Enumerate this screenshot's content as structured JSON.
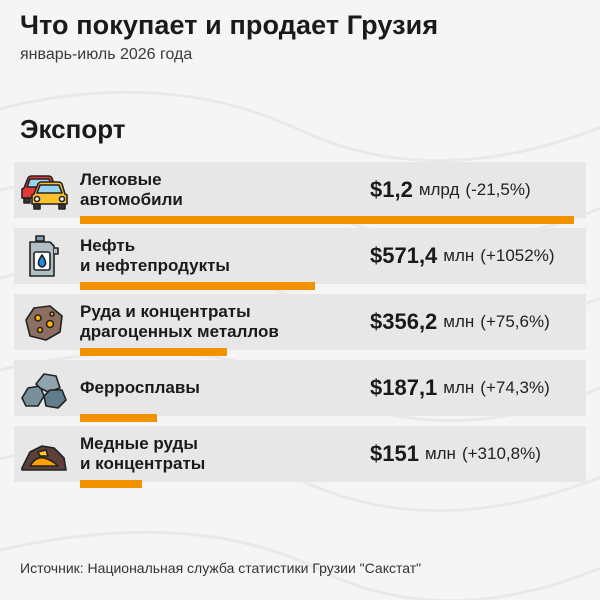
{
  "header": {
    "title": "Что покупает и продает Грузия",
    "subtitle": "январь-июль 2026 года"
  },
  "section": {
    "title": "Экспорт"
  },
  "colors": {
    "bar": "#f39200",
    "row_bg": "#e7e7e7"
  },
  "chart_data": {
    "type": "bar",
    "orientation": "horizontal",
    "unit": "USD",
    "categories": [
      "Легковые автомобили",
      "Нефть и нефтепродукты",
      "Руда и концентраты драгоценных металлов",
      "Ферросплавы",
      "Медные руды и концентраты"
    ],
    "values_musd": [
      1200,
      571.4,
      356.2,
      187.1,
      151
    ],
    "xlim": [
      0,
      1200
    ],
    "grid": false,
    "legend": "none"
  },
  "rows": [
    {
      "icon": "car-icon",
      "label_line1": "Легковые",
      "label_line2": "автомобили",
      "amount": "$1,2",
      "unit": "млрд",
      "change": "(-21,5%)",
      "value_musd": 1200
    },
    {
      "icon": "oil-canister-icon",
      "label_line1": "Нефть",
      "label_line2": "и нефтепродукты",
      "amount": "$571,4",
      "unit": "млн",
      "change": "(+1052%)",
      "value_musd": 571.4
    },
    {
      "icon": "precious-ore-icon",
      "label_line1": "Руда и концентраты",
      "label_line2": "драгоценных металлов",
      "amount": "$356,2",
      "unit": "млн",
      "change": "(+75,6%)",
      "value_musd": 356.2
    },
    {
      "icon": "ferroalloy-rocks-icon",
      "label_line1": "Ферросплавы",
      "label_line2": "",
      "amount": "$187,1",
      "unit": "млн",
      "change": "(+74,3%)",
      "value_musd": 187.1
    },
    {
      "icon": "copper-ore-icon",
      "label_line1": "Медные руды",
      "label_line2": "и концентраты",
      "amount": "$151",
      "unit": "млн",
      "change": "(+310,8%)",
      "value_musd": 151
    }
  ],
  "footer": {
    "source": "Источник: Национальная служба статистики Грузии \"Сакстат\""
  }
}
